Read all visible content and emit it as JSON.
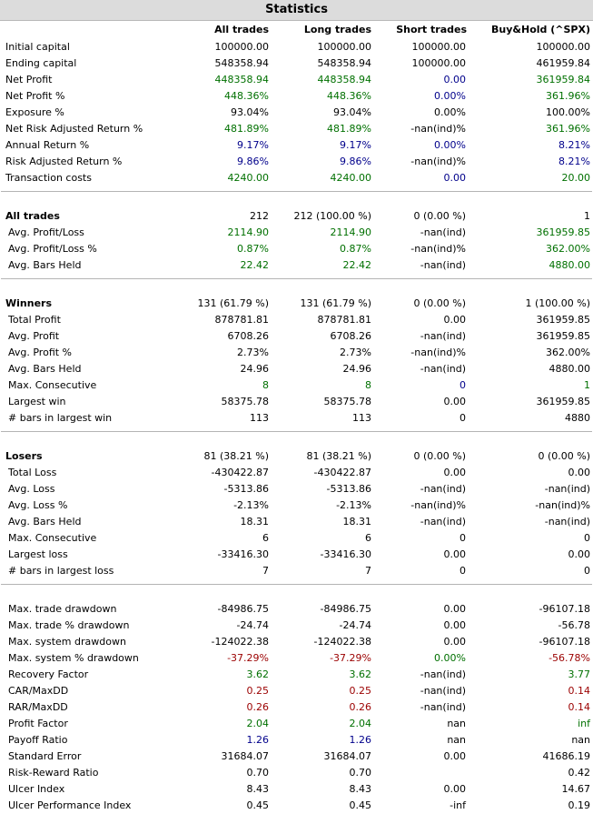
{
  "title": "Statistics",
  "columns": [
    "All trades",
    "Long trades",
    "Short trades",
    "Buy&Hold (^SPX)"
  ],
  "sections": [
    {
      "rows": [
        {
          "label": "Initial capital",
          "c": [
            "",
            "",
            "",
            ""
          ],
          "v": [
            "100000.00",
            "100000.00",
            "100000.00",
            "100000.00"
          ]
        },
        {
          "label": "Ending capital",
          "c": [
            "",
            "",
            "",
            ""
          ],
          "v": [
            "548358.94",
            "548358.94",
            "100000.00",
            "461959.84"
          ]
        },
        {
          "label": "Net Profit",
          "c": [
            "green",
            "green",
            "blue",
            "green"
          ],
          "v": [
            "448358.94",
            "448358.94",
            "0.00",
            "361959.84"
          ]
        },
        {
          "label": "Net Profit %",
          "c": [
            "green",
            "green",
            "blue",
            "green"
          ],
          "v": [
            "448.36%",
            "448.36%",
            "0.00%",
            "361.96%"
          ]
        },
        {
          "label": "Exposure %",
          "c": [
            "",
            "",
            "",
            ""
          ],
          "v": [
            "93.04%",
            "93.04%",
            "0.00%",
            "100.00%"
          ]
        },
        {
          "label": "Net Risk Adjusted Return %",
          "c": [
            "green",
            "green",
            "",
            "green"
          ],
          "v": [
            "481.89%",
            "481.89%",
            "-nan(ind)%",
            "361.96%"
          ]
        },
        {
          "label": "Annual Return %",
          "c": [
            "blue",
            "blue",
            "blue",
            "blue"
          ],
          "v": [
            "9.17%",
            "9.17%",
            "0.00%",
            "8.21%"
          ]
        },
        {
          "label": "Risk Adjusted Return %",
          "c": [
            "blue",
            "blue",
            "",
            "blue"
          ],
          "v": [
            "9.86%",
            "9.86%",
            "-nan(ind)%",
            "8.21%"
          ]
        },
        {
          "label": "Transaction costs",
          "c": [
            "green",
            "green",
            "blue",
            "green"
          ],
          "v": [
            "4240.00",
            "4240.00",
            "0.00",
            "20.00"
          ]
        }
      ]
    },
    {
      "rows": [
        {
          "label": "All trades",
          "head": true,
          "c": [
            "",
            "",
            "",
            ""
          ],
          "v": [
            "212",
            "212 (100.00 %)",
            "0 (0.00 %)",
            "1"
          ]
        },
        {
          "label": "Avg. Profit/Loss",
          "c": [
            "green",
            "green",
            "",
            "green"
          ],
          "v": [
            "2114.90",
            "2114.90",
            "-nan(ind)",
            "361959.85"
          ]
        },
        {
          "label": "Avg. Profit/Loss %",
          "c": [
            "green",
            "green",
            "",
            "green"
          ],
          "v": [
            "0.87%",
            "0.87%",
            "-nan(ind)%",
            "362.00%"
          ]
        },
        {
          "label": "Avg. Bars Held",
          "c": [
            "green",
            "green",
            "",
            "green"
          ],
          "v": [
            "22.42",
            "22.42",
            "-nan(ind)",
            "4880.00"
          ]
        }
      ]
    },
    {
      "rows": [
        {
          "label": "Winners",
          "head": true,
          "c": [
            "",
            "",
            "",
            ""
          ],
          "v": [
            "131 (61.79 %)",
            "131 (61.79 %)",
            "0 (0.00 %)",
            "1 (100.00 %)"
          ]
        },
        {
          "label": "Total Profit",
          "c": [
            "",
            "",
            "",
            ""
          ],
          "v": [
            "878781.81",
            "878781.81",
            "0.00",
            "361959.85"
          ]
        },
        {
          "label": "Avg. Profit",
          "c": [
            "",
            "",
            "",
            ""
          ],
          "v": [
            "6708.26",
            "6708.26",
            "-nan(ind)",
            "361959.85"
          ]
        },
        {
          "label": "Avg. Profit %",
          "c": [
            "",
            "",
            "",
            ""
          ],
          "v": [
            "2.73%",
            "2.73%",
            "-nan(ind)%",
            "362.00%"
          ]
        },
        {
          "label": "Avg. Bars Held",
          "c": [
            "",
            "",
            "",
            ""
          ],
          "v": [
            "24.96",
            "24.96",
            "-nan(ind)",
            "4880.00"
          ]
        },
        {
          "label": "Max. Consecutive",
          "c": [
            "green",
            "green",
            "blue",
            "green"
          ],
          "v": [
            "8",
            "8",
            "0",
            "1"
          ]
        },
        {
          "label": "Largest win",
          "c": [
            "",
            "",
            "",
            ""
          ],
          "v": [
            "58375.78",
            "58375.78",
            "0.00",
            "361959.85"
          ]
        },
        {
          "label": "# bars in largest win",
          "c": [
            "",
            "",
            "",
            ""
          ],
          "v": [
            "113",
            "113",
            "0",
            "4880"
          ]
        }
      ]
    },
    {
      "rows": [
        {
          "label": "Losers",
          "head": true,
          "c": [
            "",
            "",
            "",
            ""
          ],
          "v": [
            "81 (38.21 %)",
            "81 (38.21 %)",
            "0 (0.00 %)",
            "0 (0.00 %)"
          ]
        },
        {
          "label": "Total Loss",
          "c": [
            "",
            "",
            "",
            ""
          ],
          "v": [
            "-430422.87",
            "-430422.87",
            "0.00",
            "0.00"
          ]
        },
        {
          "label": "Avg. Loss",
          "c": [
            "",
            "",
            "",
            ""
          ],
          "v": [
            "-5313.86",
            "-5313.86",
            "-nan(ind)",
            "-nan(ind)"
          ]
        },
        {
          "label": "Avg. Loss %",
          "c": [
            "",
            "",
            "",
            ""
          ],
          "v": [
            "-2.13%",
            "-2.13%",
            "-nan(ind)%",
            "-nan(ind)%"
          ]
        },
        {
          "label": "Avg. Bars Held",
          "c": [
            "",
            "",
            "",
            ""
          ],
          "v": [
            "18.31",
            "18.31",
            "-nan(ind)",
            "-nan(ind)"
          ]
        },
        {
          "label": "Max. Consecutive",
          "c": [
            "",
            "",
            "",
            ""
          ],
          "v": [
            "6",
            "6",
            "0",
            "0"
          ]
        },
        {
          "label": "Largest loss",
          "c": [
            "",
            "",
            "",
            ""
          ],
          "v": [
            "-33416.30",
            "-33416.30",
            "0.00",
            "0.00"
          ]
        },
        {
          "label": "# bars in largest loss",
          "c": [
            "",
            "",
            "",
            ""
          ],
          "v": [
            "7",
            "7",
            "0",
            "0"
          ]
        }
      ]
    },
    {
      "rows": [
        {
          "label": "Max. trade drawdown",
          "c": [
            "",
            "",
            "",
            ""
          ],
          "v": [
            "-84986.75",
            "-84986.75",
            "0.00",
            "-96107.18"
          ]
        },
        {
          "label": "Max. trade % drawdown",
          "c": [
            "",
            "",
            "",
            ""
          ],
          "v": [
            "-24.74",
            "-24.74",
            "0.00",
            "-56.78"
          ]
        },
        {
          "label": "Max. system drawdown",
          "c": [
            "",
            "",
            "",
            ""
          ],
          "v": [
            "-124022.38",
            "-124022.38",
            "0.00",
            "-96107.18"
          ]
        },
        {
          "label": "Max. system % drawdown",
          "c": [
            "red",
            "red",
            "green",
            "red"
          ],
          "v": [
            "-37.29%",
            "-37.29%",
            "0.00%",
            "-56.78%"
          ]
        },
        {
          "label": "Recovery Factor",
          "c": [
            "green",
            "green",
            "",
            "green"
          ],
          "v": [
            "3.62",
            "3.62",
            "-nan(ind)",
            "3.77"
          ]
        },
        {
          "label": "CAR/MaxDD",
          "c": [
            "red",
            "red",
            "",
            "red"
          ],
          "v": [
            "0.25",
            "0.25",
            "-nan(ind)",
            "0.14"
          ]
        },
        {
          "label": "RAR/MaxDD",
          "c": [
            "red",
            "red",
            "",
            "red"
          ],
          "v": [
            "0.26",
            "0.26",
            "-nan(ind)",
            "0.14"
          ]
        },
        {
          "label": "Profit Factor",
          "c": [
            "green",
            "green",
            "",
            "green"
          ],
          "v": [
            "2.04",
            "2.04",
            "nan",
            "inf"
          ]
        },
        {
          "label": "Payoff Ratio",
          "c": [
            "blue",
            "blue",
            "",
            ""
          ],
          "v": [
            "1.26",
            "1.26",
            "nan",
            "nan"
          ]
        },
        {
          "label": "Standard Error",
          "c": [
            "",
            "",
            "",
            ""
          ],
          "v": [
            "31684.07",
            "31684.07",
            "0.00",
            "41686.19"
          ]
        },
        {
          "label": "Risk-Reward Ratio",
          "c": [
            "",
            "",
            "",
            ""
          ],
          "v": [
            "0.70",
            "0.70",
            "",
            "0.42"
          ]
        },
        {
          "label": "Ulcer Index",
          "c": [
            "",
            "",
            "",
            ""
          ],
          "v": [
            "8.43",
            "8.43",
            "0.00",
            "14.67"
          ]
        },
        {
          "label": "Ulcer Performance Index",
          "c": [
            "",
            "",
            "",
            ""
          ],
          "v": [
            "0.45",
            "0.45",
            "-inf",
            "0.19"
          ]
        }
      ]
    }
  ]
}
